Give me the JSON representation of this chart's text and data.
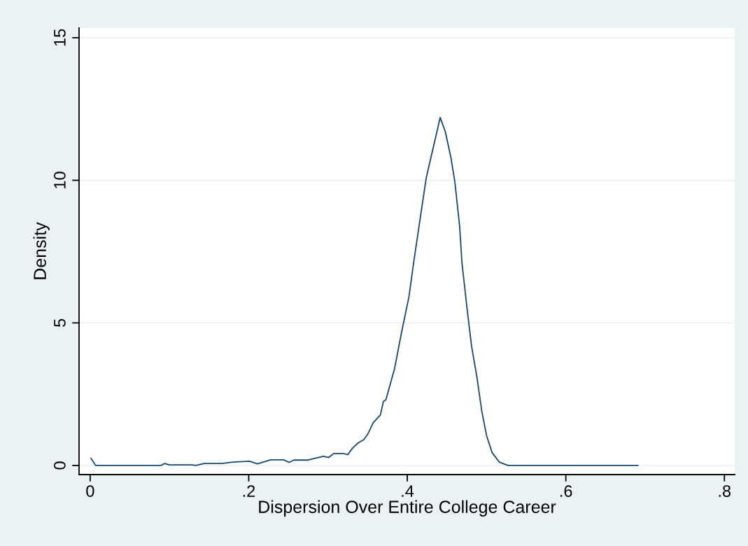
{
  "chart_data": {
    "type": "line",
    "xlabel": "Dispersion Over Entire College Career",
    "ylabel": "Density",
    "x": [
      0.001,
      0.007,
      0.089,
      0.094,
      0.1,
      0.129,
      0.133,
      0.144,
      0.166,
      0.18,
      0.201,
      0.211,
      0.228,
      0.244,
      0.251,
      0.257,
      0.275,
      0.294,
      0.301,
      0.307,
      0.319,
      0.325,
      0.331,
      0.338,
      0.345,
      0.35,
      0.357,
      0.366,
      0.37,
      0.373,
      0.384,
      0.393,
      0.402,
      0.408,
      0.417,
      0.424,
      0.4415,
      0.448,
      0.455,
      0.46,
      0.466,
      0.469,
      0.475,
      0.481,
      0.488,
      0.494,
      0.5,
      0.507,
      0.516,
      0.527,
      0.691
    ],
    "series": [
      {
        "color": "#1a476f",
        "values": [
          0.25,
          0,
          0,
          0.07,
          0.02,
          0.02,
          0,
          0.07,
          0.07,
          0.12,
          0.15,
          0.06,
          0.2,
          0.2,
          0.11,
          0.19,
          0.19,
          0.32,
          0.28,
          0.42,
          0.42,
          0.38,
          0.61,
          0.79,
          0.9,
          1.09,
          1.5,
          1.77,
          2.25,
          2.3,
          3.4,
          4.7,
          5.9,
          7.1,
          8.8,
          10.1,
          12.2,
          11.7,
          10.8,
          9.95,
          8.4,
          7.1,
          5.6,
          4.2,
          3.07,
          1.9,
          1.05,
          0.45,
          0.12,
          0,
          0
        ]
      }
    ],
    "xlim": [
      -0.014,
      0.813
    ],
    "ylim": [
      -0.32,
      15.34
    ],
    "xticks": [
      0,
      {
        "value": 0.2,
        "label": ".2"
      },
      {
        "value": 0.4,
        "label": ".4"
      },
      {
        "value": 0.6,
        "label": ".6"
      },
      {
        "value": 0.8,
        "label": ".8"
      }
    ],
    "yticks": [
      0,
      5,
      10,
      15
    ],
    "grid": "y",
    "legend": false,
    "marker": "none",
    "line_style": "solid"
  }
}
